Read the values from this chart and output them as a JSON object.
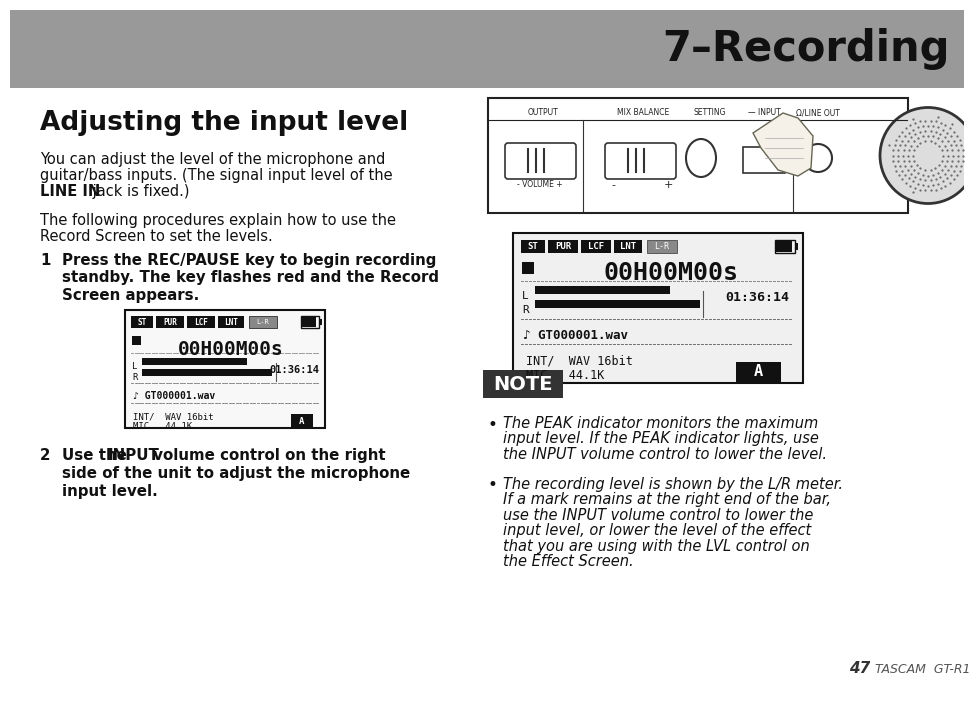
{
  "page_bg": "#ffffff",
  "header_bg": "#999999",
  "header_text": "7–Recording",
  "header_text_color": "#111111",
  "title": "Adjusting the input level",
  "body_line1": "You can adjust the level of the microphone and",
  "body_line2": "guitar/bass inputs. (The signal input level of the",
  "body_line3_bold": "LINE IN",
  "body_line3_rest": " jack is fixed.)",
  "body_line4": "The following procedures explain how to use the",
  "body_line5": "Record Screen to set the levels.",
  "step1_num": "1",
  "step1_a": "Press the REC/PAUSE key to begin recording",
  "step1_b": "standby. The key flashes red and the Record",
  "step1_c": "Screen appears.",
  "step2_num": "2",
  "step2_a": "Use the ",
  "step2_a2": "INPUT",
  "step2_a3": " volume control on the right",
  "step2_b": "side of the unit to adjust the microphone",
  "step2_c": "input level.",
  "note_label": "NOTE",
  "note_bg": "#333333",
  "note_text_color": "#ffffff",
  "bullet1_lines": [
    "The PEAK indicator monitors the maximum",
    "input level. If the PEAK indicator lights, use",
    "the INPUT volume control to lower the level."
  ],
  "bullet2_lines": [
    "The recording level is shown by the L/R meter.",
    "If a mark remains at the right end of the bar,",
    "use the INPUT volume control to lower the",
    "input level, or lower the level of the effect",
    "that you are using with the LVL control on",
    "the Effect Screen."
  ],
  "footer_page": "47",
  "footer_brand": "TASCAM  GT-R1"
}
